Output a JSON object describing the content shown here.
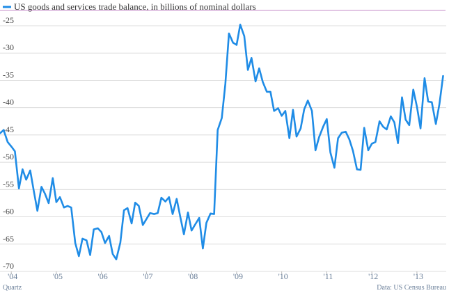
{
  "chart_data": {
    "type": "line",
    "title": "",
    "legend": {
      "placement": "top-left",
      "entries": [
        "US goods and services trade balance, in billions of nominal dollars"
      ]
    },
    "series": [
      {
        "name": "US goods and services trade balance, in billions of nominal dollars",
        "color": "#1f8ce6",
        "points": [
          [
            2003.75,
            -44.7
          ],
          [
            2003.83,
            -44.1
          ],
          [
            2003.92,
            -46.3
          ],
          [
            2004.0,
            -47.1
          ],
          [
            2004.08,
            -48.0
          ],
          [
            2004.17,
            -54.8
          ],
          [
            2004.25,
            -51.3
          ],
          [
            2004.33,
            -53.2
          ],
          [
            2004.42,
            -51.5
          ],
          [
            2004.5,
            -55.3
          ],
          [
            2004.58,
            -58.9
          ],
          [
            2004.67,
            -54.5
          ],
          [
            2004.75,
            -55.8
          ],
          [
            2004.83,
            -57.5
          ],
          [
            2004.92,
            -52.9
          ],
          [
            2005.0,
            -57.3
          ],
          [
            2005.08,
            -56.4
          ],
          [
            2005.17,
            -58.3
          ],
          [
            2005.25,
            -58.0
          ],
          [
            2005.33,
            -58.3
          ],
          [
            2005.42,
            -64.8
          ],
          [
            2005.5,
            -67.2
          ],
          [
            2005.58,
            -64.0
          ],
          [
            2005.67,
            -64.3
          ],
          [
            2005.75,
            -67.0
          ],
          [
            2005.83,
            -62.3
          ],
          [
            2005.92,
            -62.1
          ],
          [
            2006.0,
            -62.8
          ],
          [
            2006.08,
            -64.8
          ],
          [
            2006.17,
            -63.5
          ],
          [
            2006.25,
            -66.8
          ],
          [
            2006.33,
            -67.8
          ],
          [
            2006.42,
            -64.7
          ],
          [
            2006.5,
            -58.8
          ],
          [
            2006.58,
            -58.4
          ],
          [
            2006.67,
            -61.2
          ],
          [
            2006.75,
            -57.4
          ],
          [
            2006.83,
            -58.0
          ],
          [
            2006.92,
            -61.5
          ],
          [
            2007.0,
            -60.4
          ],
          [
            2007.08,
            -59.3
          ],
          [
            2007.17,
            -59.5
          ],
          [
            2007.25,
            -59.3
          ],
          [
            2007.33,
            -56.5
          ],
          [
            2007.42,
            -57.2
          ],
          [
            2007.5,
            -56.4
          ],
          [
            2007.58,
            -59.5
          ],
          [
            2007.67,
            -56.7
          ],
          [
            2007.75,
            -60.0
          ],
          [
            2007.83,
            -63.2
          ],
          [
            2007.92,
            -59.2
          ],
          [
            2008.0,
            -62.5
          ],
          [
            2008.08,
            -61.4
          ],
          [
            2008.17,
            -60.2
          ],
          [
            2008.25,
            -65.8
          ],
          [
            2008.33,
            -61.1
          ],
          [
            2008.42,
            -59.4
          ],
          [
            2008.5,
            -59.5
          ],
          [
            2008.58,
            -44.1
          ],
          [
            2008.67,
            -41.9
          ],
          [
            2008.75,
            -35.7
          ],
          [
            2008.83,
            -26.4
          ],
          [
            2008.92,
            -28.1
          ],
          [
            2009.0,
            -28.5
          ],
          [
            2009.08,
            -24.8
          ],
          [
            2009.17,
            -26.9
          ],
          [
            2009.25,
            -33.1
          ],
          [
            2009.33,
            -30.9
          ],
          [
            2009.42,
            -35.2
          ],
          [
            2009.5,
            -32.8
          ],
          [
            2009.58,
            -35.3
          ],
          [
            2009.67,
            -37.1
          ],
          [
            2009.75,
            -37.1
          ],
          [
            2009.83,
            -40.6
          ],
          [
            2009.92,
            -40.1
          ],
          [
            2010.0,
            -41.5
          ],
          [
            2010.08,
            -40.6
          ],
          [
            2010.17,
            -45.6
          ],
          [
            2010.25,
            -40.4
          ],
          [
            2010.33,
            -45.3
          ],
          [
            2010.42,
            -43.8
          ],
          [
            2010.5,
            -40.3
          ],
          [
            2010.58,
            -38.7
          ],
          [
            2010.67,
            -40.6
          ],
          [
            2010.75,
            -47.8
          ],
          [
            2010.83,
            -45.4
          ],
          [
            2010.92,
            -43.5
          ],
          [
            2011.0,
            -42.1
          ],
          [
            2011.08,
            -48.2
          ],
          [
            2011.17,
            -51.0
          ],
          [
            2011.25,
            -45.6
          ],
          [
            2011.33,
            -44.6
          ],
          [
            2011.42,
            -44.4
          ],
          [
            2011.5,
            -45.8
          ],
          [
            2011.58,
            -47.9
          ],
          [
            2011.67,
            -51.3
          ],
          [
            2011.75,
            -51.4
          ],
          [
            2011.83,
            -43.7
          ],
          [
            2011.92,
            -47.8
          ],
          [
            2012.0,
            -46.6
          ],
          [
            2012.08,
            -46.3
          ],
          [
            2012.17,
            -42.5
          ],
          [
            2012.25,
            -43.5
          ],
          [
            2012.33,
            -44.0
          ],
          [
            2012.42,
            -41.6
          ],
          [
            2012.5,
            -42.7
          ],
          [
            2012.58,
            -46.5
          ],
          [
            2012.67,
            -38.1
          ],
          [
            2012.75,
            -42.2
          ],
          [
            2012.83,
            -43.2
          ],
          [
            2012.92,
            -36.7
          ],
          [
            2013.0,
            -39.8
          ],
          [
            2013.08,
            -43.8
          ],
          [
            2013.17,
            -34.6
          ],
          [
            2013.25,
            -38.9
          ],
          [
            2013.33,
            -39.0
          ],
          [
            2013.42,
            -43.0
          ],
          [
            2013.5,
            -39.3
          ],
          [
            2013.58,
            -34.2
          ]
        ]
      }
    ],
    "xlabel": "",
    "ylabel": "",
    "xlim": [
      2003.75,
      2013.65
    ],
    "ylim": [
      -70,
      -25
    ],
    "y_ticks": [
      -25,
      -30,
      -35,
      -40,
      -45,
      -50,
      -55,
      -60,
      -65,
      -70
    ],
    "x_ticks": [
      {
        "label": "'04",
        "x": 2004.0
      },
      {
        "label": "'05",
        "x": 2005.0
      },
      {
        "label": "'06",
        "x": 2006.0
      },
      {
        "label": "'07",
        "x": 2007.0
      },
      {
        "label": "'08",
        "x": 2008.0
      },
      {
        "label": "'09",
        "x": 2009.0
      },
      {
        "label": "'10",
        "x": 2010.0
      },
      {
        "label": "'11",
        "x": 2011.0
      },
      {
        "label": "'12",
        "x": 2012.0
      },
      {
        "label": "'13",
        "x": 2013.0
      }
    ],
    "grid": {
      "horizontal": true,
      "vertical": false
    }
  },
  "footer": {
    "source_left": "Quartz",
    "source_right": "Data: US Census Bureau"
  },
  "colors": {
    "line": "#1f8ce6",
    "grid": "#dcdcdc",
    "legend_rule": "#c58ec9",
    "tick_x": "#6a7f99"
  }
}
